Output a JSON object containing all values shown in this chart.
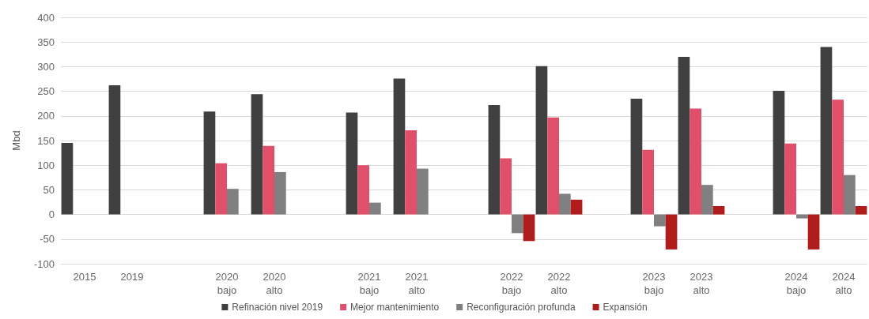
{
  "chart_data": {
    "type": "bar",
    "ylabel": "Mbd",
    "categories": [
      "2015",
      "2019",
      null,
      "2020\nbajo",
      "2020\nalto",
      null,
      "2021\nbajo",
      "2021\nalto",
      null,
      "2022\nbajo",
      "2022\nalto",
      null,
      "2023\nbajo",
      "2023\nalto",
      null,
      "2024\nbajo",
      "2024\nalto"
    ],
    "series": [
      {
        "name": "Refinación nivel 2019",
        "color": "#404040",
        "values": [
          145,
          262,
          null,
          209,
          244,
          null,
          207,
          276,
          null,
          222,
          301,
          null,
          235,
          320,
          null,
          251,
          340
        ]
      },
      {
        "name": "Mejor mantenimiento",
        "color": "#e0506a",
        "values": [
          null,
          null,
          null,
          104,
          139,
          null,
          100,
          171,
          null,
          114,
          197,
          null,
          131,
          215,
          null,
          144,
          233
        ]
      },
      {
        "name": "Reconfiguración profunda",
        "color": "#808080",
        "values": [
          null,
          null,
          null,
          52,
          86,
          null,
          24,
          93,
          null,
          -38,
          42,
          null,
          -24,
          60,
          null,
          -8,
          80
        ]
      },
      {
        "name": "Expansión",
        "color": "#b01c1c",
        "values": [
          null,
          null,
          null,
          null,
          null,
          null,
          null,
          null,
          null,
          -54,
          30,
          null,
          -71,
          17,
          null,
          -71,
          17
        ]
      }
    ],
    "ylim": [
      -100,
      400
    ],
    "yticks": [
      -100,
      -50,
      0,
      50,
      100,
      150,
      200,
      250,
      300,
      350,
      400
    ],
    "grid": "y",
    "legend": "bottom"
  }
}
